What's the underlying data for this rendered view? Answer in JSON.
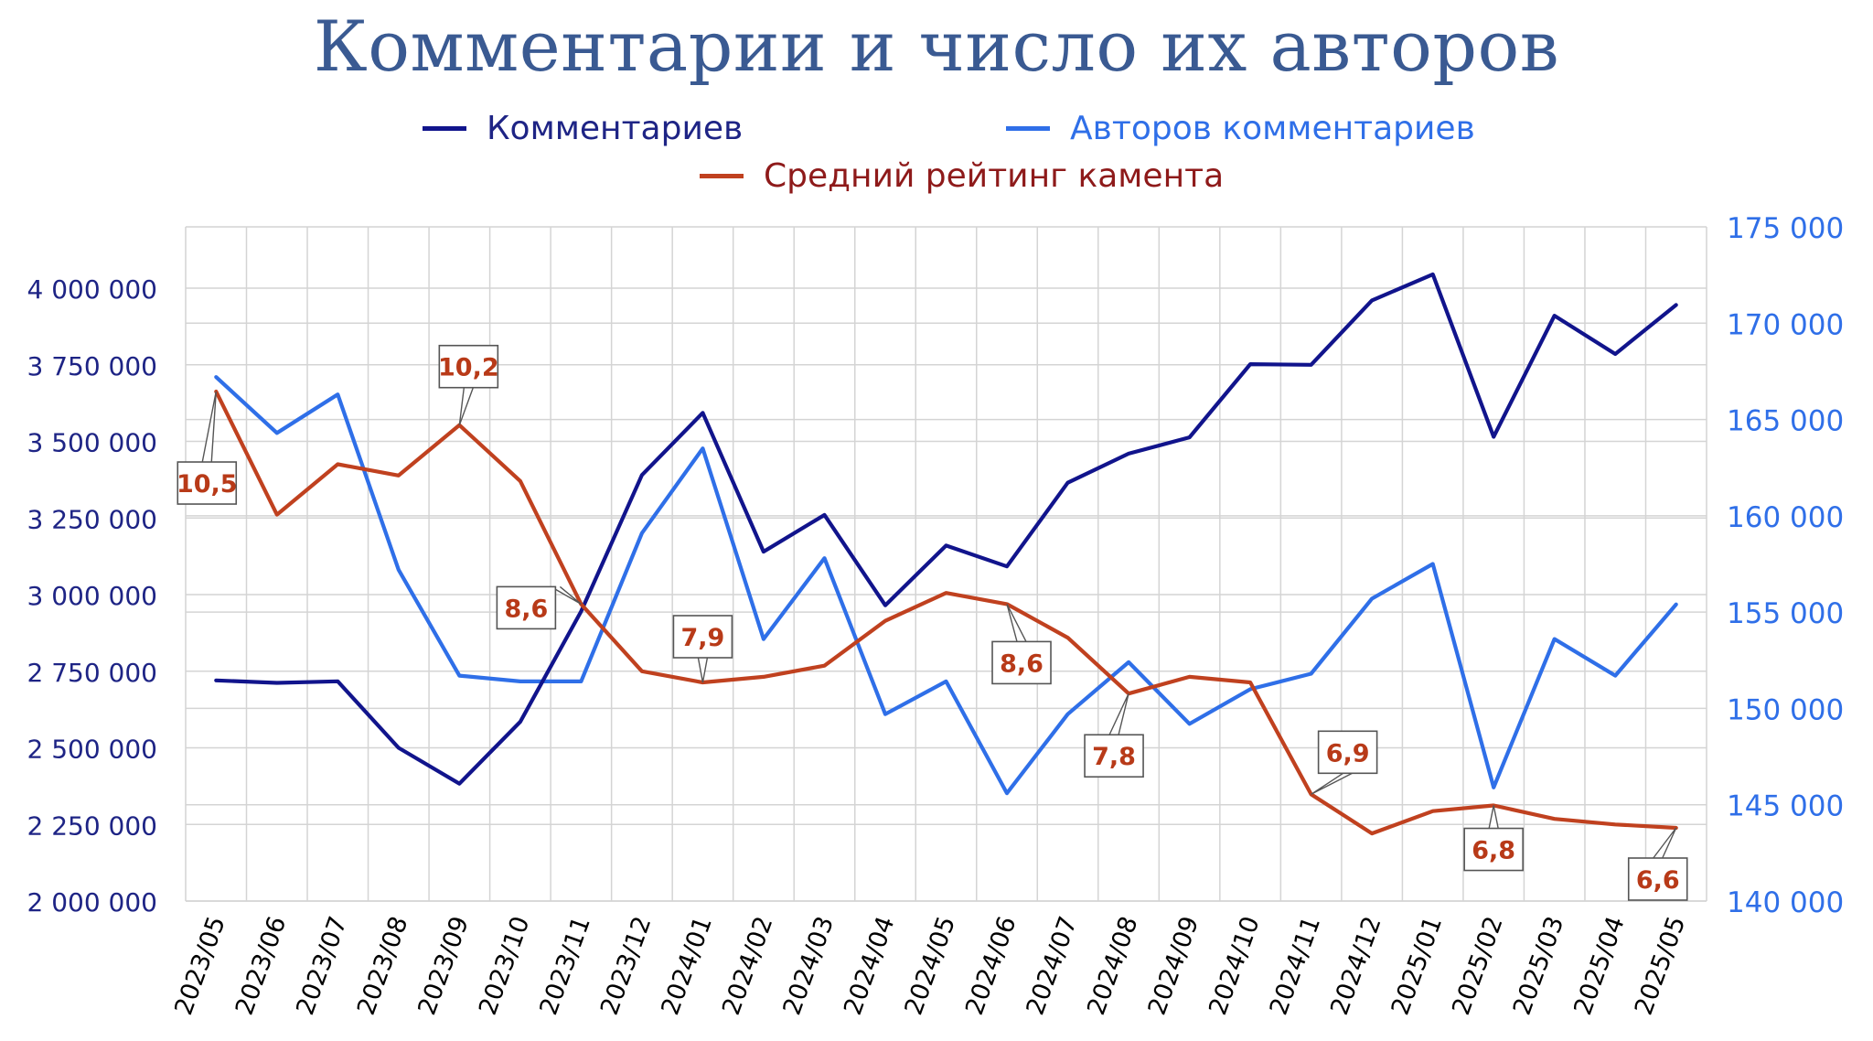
{
  "chart_data": {
    "type": "line",
    "title": "Комментарии и число их авторов",
    "categories": [
      "2023/05",
      "2023/06",
      "2023/07",
      "2023/08",
      "2023/09",
      "2023/10",
      "2023/11",
      "2023/12",
      "2024/01",
      "2024/02",
      "2024/03",
      "2024/04",
      "2024/05",
      "2024/06",
      "2024/07",
      "2024/08",
      "2024/09",
      "2024/10",
      "2024/11",
      "2024/12",
      "2025/01",
      "2025/02",
      "2025/03",
      "2025/04",
      "2025/05"
    ],
    "left_axis": {
      "min": 2000000,
      "max": 4200000,
      "ticks": [
        2000000,
        2250000,
        2500000,
        2750000,
        3000000,
        3250000,
        3500000,
        3750000,
        4000000
      ],
      "tick_labels": [
        "2 000 000",
        "2 250 000",
        "2 500 000",
        "2 750 000",
        "3 000 000",
        "3 250 000",
        "3 500 000",
        "3 750 000",
        "4 000 000"
      ]
    },
    "right_axis": {
      "min": 140000,
      "max": 175000,
      "ticks": [
        140000,
        145000,
        150000,
        155000,
        160000,
        165000,
        170000,
        175000
      ],
      "tick_labels": [
        "140 000",
        "145 000",
        "150 000",
        "155 000",
        "160 000",
        "165 000",
        "170 000",
        "175 000"
      ]
    },
    "grid": true,
    "legend_position": "top",
    "series": [
      {
        "name": "Комментариев",
        "axis": "left",
        "color": "#11148c",
        "values": [
          2720000,
          2712000,
          2717000,
          2500000,
          2383000,
          2585000,
          2945000,
          3390000,
          3593000,
          3140000,
          3260000,
          2965000,
          3160000,
          3092000,
          3365000,
          3460000,
          3513000,
          3752000,
          3750000,
          3960000,
          4045000,
          3515000,
          3910000,
          3785000,
          3945000
        ]
      },
      {
        "name": "Авторов комментариев",
        "axis": "right",
        "color": "#2f6fe8",
        "values": [
          167200,
          164300,
          166300,
          157200,
          151700,
          151400,
          151400,
          159100,
          163500,
          153600,
          157800,
          149700,
          151400,
          145600,
          149700,
          152400,
          149200,
          151000,
          151800,
          155700,
          157500,
          145900,
          153600,
          151700,
          155400
        ]
      },
      {
        "name": "Средний рейтинг камента",
        "axis": "rating",
        "color": "#c0411f",
        "values": [
          10.5,
          9.4,
          9.85,
          9.75,
          10.2,
          9.7,
          8.6,
          8.0,
          7.9,
          7.95,
          8.05,
          8.45,
          8.7,
          8.6,
          8.3,
          7.8,
          7.95,
          7.9,
          6.9,
          6.55,
          6.75,
          6.8,
          6.68,
          6.63,
          6.6
        ],
        "data_labels": [
          {
            "index": 0,
            "text": "10,5"
          },
          {
            "index": 4,
            "text": "10,2"
          },
          {
            "index": 6,
            "text": "8,6"
          },
          {
            "index": 8,
            "text": "7,9"
          },
          {
            "index": 13,
            "text": "8,6"
          },
          {
            "index": 15,
            "text": "7,8"
          },
          {
            "index": 18,
            "text": "6,9"
          },
          {
            "index": 21,
            "text": "6,8"
          },
          {
            "index": 24,
            "text": "6,6"
          }
        ]
      }
    ]
  },
  "legend": {
    "items": [
      {
        "label": "Комментариев",
        "color": "#11148c",
        "text_color": "#1e2485"
      },
      {
        "label": "Авторов комментариев",
        "color": "#2f6fe8",
        "text_color": "#2f6fe8"
      },
      {
        "label": "Средний рейтинг камента",
        "color": "#c0411f",
        "text_color": "#8e1a1a"
      }
    ]
  },
  "colors": {
    "title": "#3a5a92",
    "left_axis_labels": "#1e2485",
    "right_axis_labels": "#2f6fe8",
    "category_labels": "#000000",
    "grid": "#d4d4d4",
    "callout_text": "#b83a18"
  }
}
